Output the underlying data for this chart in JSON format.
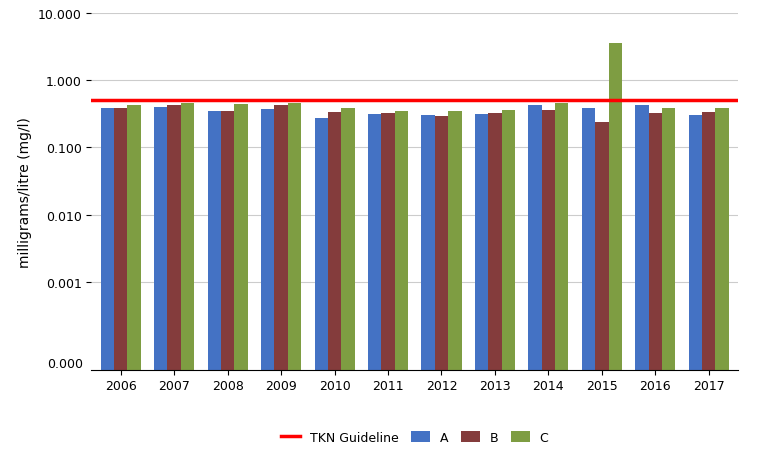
{
  "years": [
    2006,
    2007,
    2008,
    2009,
    2010,
    2011,
    2012,
    2013,
    2014,
    2015,
    2016,
    2017
  ],
  "A": [
    0.38,
    0.4,
    0.35,
    0.37,
    0.27,
    0.31,
    0.3,
    0.31,
    0.42,
    0.38,
    0.42,
    0.3
  ],
  "B": [
    0.38,
    0.42,
    0.34,
    0.42,
    0.33,
    0.32,
    0.29,
    0.32,
    0.36,
    0.24,
    0.32,
    0.33
  ],
  "C": [
    0.42,
    0.45,
    0.44,
    0.45,
    0.38,
    0.35,
    0.34,
    0.36,
    0.46,
    3.5,
    0.38,
    0.38
  ],
  "tkn_guideline": 0.5,
  "colors": {
    "A": "#4472C4",
    "B": "#843C3C",
    "C": "#7E9D42"
  },
  "guideline_color": "#FF0000",
  "ylabel": "milligrams/litre (mg/l)",
  "ylim_min": 5e-05,
  "ylim_max": 10.0,
  "background_color": "#FFFFFF",
  "grid_color": "#CCCCCC",
  "bar_width": 0.25,
  "legend_labels": [
    "A",
    "B",
    "C",
    "TKN Guideline"
  ]
}
